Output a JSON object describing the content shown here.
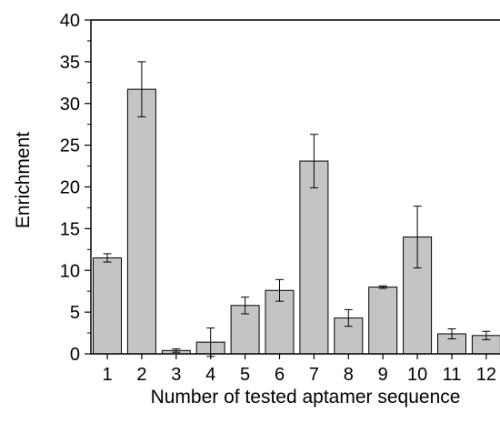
{
  "chart_data": {
    "type": "bar",
    "title": "",
    "xlabel": "Number of tested aptamer sequence",
    "ylabel": "Enrichment",
    "categories": [
      "1",
      "2",
      "3",
      "4",
      "5",
      "6",
      "7",
      "8",
      "9",
      "10",
      "11",
      "12"
    ],
    "values": [
      11.5,
      31.7,
      0.4,
      1.4,
      5.8,
      7.6,
      23.1,
      4.3,
      8.0,
      14.0,
      2.4,
      2.2
    ],
    "errors": [
      0.5,
      3.3,
      0.2,
      1.7,
      1.0,
      1.3,
      3.2,
      1.0,
      0.15,
      3.7,
      0.6,
      0.5
    ],
    "ylim": [
      0,
      40
    ],
    "yticks": [
      "0",
      "5",
      "10",
      "15",
      "20",
      "25",
      "30",
      "35",
      "40"
    ],
    "grid": false,
    "colors": {
      "bar_fill": "#c4c4c4",
      "bar_stroke": "#000000",
      "axis": "#000000"
    }
  }
}
